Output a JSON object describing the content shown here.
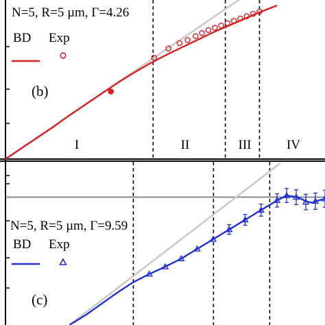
{
  "chart_data": [
    {
      "panel_label": "(b)",
      "type": "line",
      "legend": {
        "title": "N=5, R=5 µm, Γ=4.26",
        "entries": [
          "BD",
          "Exp"
        ]
      },
      "colors": {
        "bd": "#d42020",
        "exp": "#d42020",
        "guide": "#c8c8c8"
      },
      "axes": {
        "x_scale": "log",
        "y_scale": "log",
        "ticks_labeled": false
      },
      "regimes": [
        "I",
        "II",
        "III",
        "IV"
      ],
      "regime_boundaries": [
        0.462,
        0.688,
        0.795
      ],
      "series": [
        {
          "name": "BD",
          "x": [
            0.0,
            0.05,
            0.1,
            0.15,
            0.2,
            0.25,
            0.3,
            0.35,
            0.4,
            0.45,
            0.5,
            0.55,
            0.6,
            0.65,
            0.7,
            0.75,
            0.8,
            0.85
          ],
          "y": [
            0.0,
            0.07,
            0.14,
            0.21,
            0.285,
            0.355,
            0.425,
            0.495,
            0.56,
            0.62,
            0.675,
            0.725,
            0.775,
            0.825,
            0.87,
            0.915,
            0.96,
            1.0
          ]
        },
        {
          "name": "Exp",
          "x": [
            0.33,
            0.465,
            0.51,
            0.545,
            0.57,
            0.595,
            0.615,
            0.635,
            0.655,
            0.675,
            0.695,
            0.715,
            0.735,
            0.755,
            0.775,
            0.795
          ],
          "y": [
            0.44,
            0.66,
            0.72,
            0.755,
            0.775,
            0.8,
            0.82,
            0.84,
            0.855,
            0.87,
            0.885,
            0.9,
            0.915,
            0.93,
            0.945,
            0.96
          ]
        },
        {
          "name": "guide",
          "x": [
            0.0,
            0.93
          ],
          "y": [
            0.0,
            1.32
          ]
        }
      ]
    },
    {
      "panel_label": "(c)",
      "type": "line",
      "legend": {
        "title": "N=5, R=5 µm, Γ=9.59",
        "entries": [
          "BD",
          "Exp"
        ]
      },
      "colors": {
        "bd": "#1f2fd4",
        "exp": "#1f2fd4",
        "guide": "#c8c8c8",
        "plateau": "#888888"
      },
      "axes": {
        "x_scale": "log",
        "y_scale": "log",
        "ticks_labeled": false
      },
      "regime_boundaries": [
        0.4,
        0.651,
        0.827
      ],
      "plateau": 0.79,
      "series": [
        {
          "name": "BD",
          "x": [
            0.2,
            0.25,
            0.3,
            0.35,
            0.4,
            0.45,
            0.5,
            0.55,
            0.6,
            0.65,
            0.7,
            0.75,
            0.8,
            0.85,
            0.88,
            0.9,
            0.92,
            0.94,
            0.96,
            0.98,
            1.0
          ],
          "y": [
            0.0,
            0.06,
            0.13,
            0.2,
            0.265,
            0.315,
            0.36,
            0.41,
            0.47,
            0.53,
            0.59,
            0.65,
            0.71,
            0.77,
            0.8,
            0.795,
            0.785,
            0.765,
            0.755,
            0.77,
            0.78
          ]
        },
        {
          "name": "Exp",
          "x": [
            0.45,
            0.5,
            0.55,
            0.6,
            0.65,
            0.7,
            0.75,
            0.8,
            0.85,
            0.88,
            0.91,
            0.94,
            0.97,
            1.0
          ],
          "y": [
            0.315,
            0.36,
            0.41,
            0.47,
            0.53,
            0.59,
            0.65,
            0.71,
            0.77,
            0.8,
            0.79,
            0.76,
            0.765,
            0.78
          ]
        },
        {
          "name": "guide",
          "x": [
            0.2,
            0.86
          ],
          "y": [
            0.0,
            1.0
          ]
        }
      ]
    }
  ]
}
